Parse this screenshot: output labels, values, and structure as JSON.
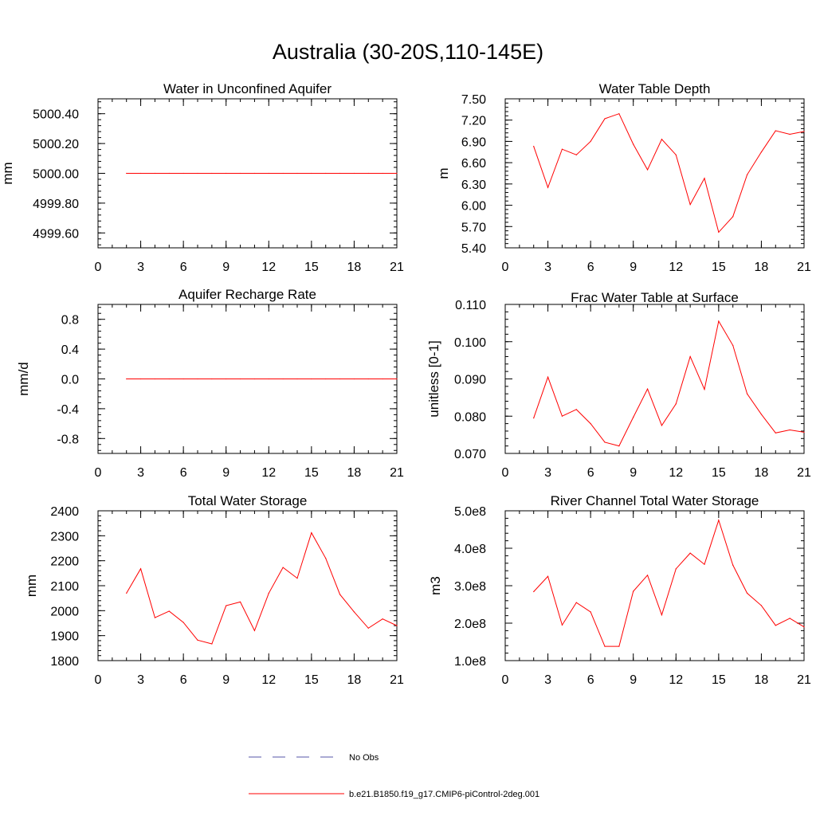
{
  "figure": {
    "title": "Australia (30-20S,110-145E)"
  },
  "colors": {
    "model_line": "#ff0000",
    "obs_line": "#5555aa",
    "axes": "#000000"
  },
  "legend": [
    {
      "label": "No Obs",
      "style": "dashed",
      "color": "#5555aa"
    },
    {
      "label": "b.e21.B1850.f19_g17.CMIP6-piControl-2deg.001",
      "style": "solid",
      "color": "#ff0000"
    }
  ],
  "chart_data": [
    {
      "type": "line",
      "title": "Water in Unconfined Aquifer",
      "ylabel": "mm",
      "xlim": [
        0,
        21
      ],
      "xticks": [
        0,
        3,
        6,
        9,
        12,
        15,
        18,
        21
      ],
      "xtick_labels": [
        "0",
        "3",
        "6",
        "9",
        "12",
        "15",
        "18",
        "21"
      ],
      "ylim": [
        4999.5,
        5000.5
      ],
      "yticks": [
        4999.6,
        4999.8,
        5000.0,
        5000.2,
        5000.4
      ],
      "ytick_labels": [
        "4999.60",
        "4999.80",
        "5000.00",
        "5000.20",
        "5000.40"
      ],
      "series": [
        {
          "x": [
            2,
            3,
            4,
            5,
            6,
            7,
            8,
            9,
            10,
            11,
            12,
            13,
            14,
            15,
            16,
            17,
            18,
            19,
            20,
            21
          ],
          "values": [
            5000,
            5000,
            5000,
            5000,
            5000,
            5000,
            5000,
            5000,
            5000,
            5000,
            5000,
            5000,
            5000,
            5000,
            5000,
            5000,
            5000,
            5000,
            5000,
            5000
          ]
        }
      ]
    },
    {
      "type": "line",
      "title": "Water Table Depth",
      "ylabel": "m",
      "xlim": [
        0,
        21
      ],
      "xticks": [
        0,
        3,
        6,
        9,
        12,
        15,
        18,
        21
      ],
      "xtick_labels": [
        "0",
        "3",
        "6",
        "9",
        "12",
        "15",
        "18",
        "21"
      ],
      "ylim": [
        5.4,
        7.5
      ],
      "yticks": [
        5.4,
        5.7,
        6.0,
        6.3,
        6.6,
        6.9,
        7.2,
        7.5
      ],
      "ytick_labels": [
        "5.40",
        "5.70",
        "6.00",
        "6.30",
        "6.60",
        "6.90",
        "7.20",
        "7.50"
      ],
      "series": [
        {
          "x": [
            2,
            3,
            4,
            5,
            6,
            7,
            8,
            9,
            10,
            11,
            12,
            13,
            14,
            15,
            16,
            17,
            18,
            19,
            20,
            21
          ],
          "values": [
            6.83,
            6.25,
            6.79,
            6.71,
            6.9,
            7.22,
            7.29,
            6.86,
            6.5,
            6.93,
            6.71,
            6.01,
            6.38,
            5.62,
            5.84,
            6.43,
            6.75,
            7.05,
            7.0,
            7.04
          ]
        }
      ]
    },
    {
      "type": "line",
      "title": "Aquifer Recharge Rate",
      "ylabel": "mm/d",
      "xlim": [
        0,
        21
      ],
      "xticks": [
        0,
        3,
        6,
        9,
        12,
        15,
        18,
        21
      ],
      "xtick_labels": [
        "0",
        "3",
        "6",
        "9",
        "12",
        "15",
        "18",
        "21"
      ],
      "ylim": [
        -1.0,
        1.0
      ],
      "yticks": [
        -0.8,
        -0.4,
        0.0,
        0.4,
        0.8
      ],
      "ytick_labels": [
        "-0.8",
        "-0.4",
        "0.0",
        "0.4",
        "0.8"
      ],
      "series": [
        {
          "x": [
            2,
            3,
            4,
            5,
            6,
            7,
            8,
            9,
            10,
            11,
            12,
            13,
            14,
            15,
            16,
            17,
            18,
            19,
            20,
            21
          ],
          "values": [
            0,
            0,
            0,
            0,
            0,
            0,
            0,
            0,
            0,
            0,
            0,
            0,
            0,
            0,
            0,
            0,
            0,
            0,
            0,
            0
          ]
        }
      ]
    },
    {
      "type": "line",
      "title": "Frac Water Table at Surface",
      "ylabel": "unitless [0-1]",
      "xlim": [
        0,
        21
      ],
      "xticks": [
        0,
        3,
        6,
        9,
        12,
        15,
        18,
        21
      ],
      "xtick_labels": [
        "0",
        "3",
        "6",
        "9",
        "12",
        "15",
        "18",
        "21"
      ],
      "ylim": [
        0.07,
        0.11
      ],
      "yticks": [
        0.07,
        0.08,
        0.09,
        0.1,
        0.11
      ],
      "ytick_labels": [
        "0.070",
        "0.080",
        "0.090",
        "0.100",
        "0.110"
      ],
      "series": [
        {
          "x": [
            2,
            3,
            4,
            5,
            6,
            7,
            8,
            9,
            10,
            11,
            12,
            13,
            14,
            15,
            16,
            17,
            18,
            19,
            20,
            21
          ],
          "values": [
            0.0795,
            0.0905,
            0.08,
            0.0818,
            0.078,
            0.073,
            0.072,
            0.0797,
            0.0873,
            0.0775,
            0.0833,
            0.096,
            0.0872,
            0.1055,
            0.099,
            0.086,
            0.0805,
            0.0755,
            0.0763,
            0.0757
          ]
        }
      ]
    },
    {
      "type": "line",
      "title": "Total Water Storage",
      "ylabel": "mm",
      "xlim": [
        0,
        21
      ],
      "xticks": [
        0,
        3,
        6,
        9,
        12,
        15,
        18,
        21
      ],
      "xtick_labels": [
        "0",
        "3",
        "6",
        "9",
        "12",
        "15",
        "18",
        "21"
      ],
      "ylim": [
        1800,
        2400
      ],
      "yticks": [
        1800,
        1900,
        2000,
        2100,
        2200,
        2300,
        2400
      ],
      "ytick_labels": [
        "1800",
        "1900",
        "2000",
        "2100",
        "2200",
        "2300",
        "2400"
      ],
      "series": [
        {
          "x": [
            2,
            3,
            4,
            5,
            6,
            7,
            8,
            9,
            10,
            11,
            12,
            13,
            14,
            15,
            16,
            17,
            18,
            19,
            20,
            21
          ],
          "values": [
            2070,
            2168,
            1972,
            1998,
            1953,
            1882,
            1867,
            2020,
            2035,
            1920,
            2070,
            2173,
            2130,
            2312,
            2210,
            2065,
            1995,
            1930,
            1967,
            1940
          ]
        }
      ]
    },
    {
      "type": "line",
      "title": "River Channel Total Water Storage",
      "ylabel": "m3",
      "xlim": [
        0,
        21
      ],
      "xticks": [
        0,
        3,
        6,
        9,
        12,
        15,
        18,
        21
      ],
      "xtick_labels": [
        "0",
        "3",
        "6",
        "9",
        "12",
        "15",
        "18",
        "21"
      ],
      "ylim": [
        100000000,
        500000000
      ],
      "yticks": [
        100000000,
        200000000,
        300000000,
        400000000,
        500000000
      ],
      "ytick_labels": [
        "1.0e8",
        "2.0e8",
        "3.0e8",
        "4.0e8",
        "5.0e8"
      ],
      "series": [
        {
          "x": [
            2,
            3,
            4,
            5,
            6,
            7,
            8,
            9,
            10,
            11,
            12,
            13,
            14,
            15,
            16,
            17,
            18,
            19,
            20,
            21
          ],
          "values": [
            284000000,
            325000000,
            195000000,
            255000000,
            230000000,
            138000000,
            138000000,
            285000000,
            328000000,
            222000000,
            345000000,
            387000000,
            357000000,
            475000000,
            355000000,
            280000000,
            247000000,
            194000000,
            213000000,
            190000000
          ]
        }
      ]
    }
  ]
}
